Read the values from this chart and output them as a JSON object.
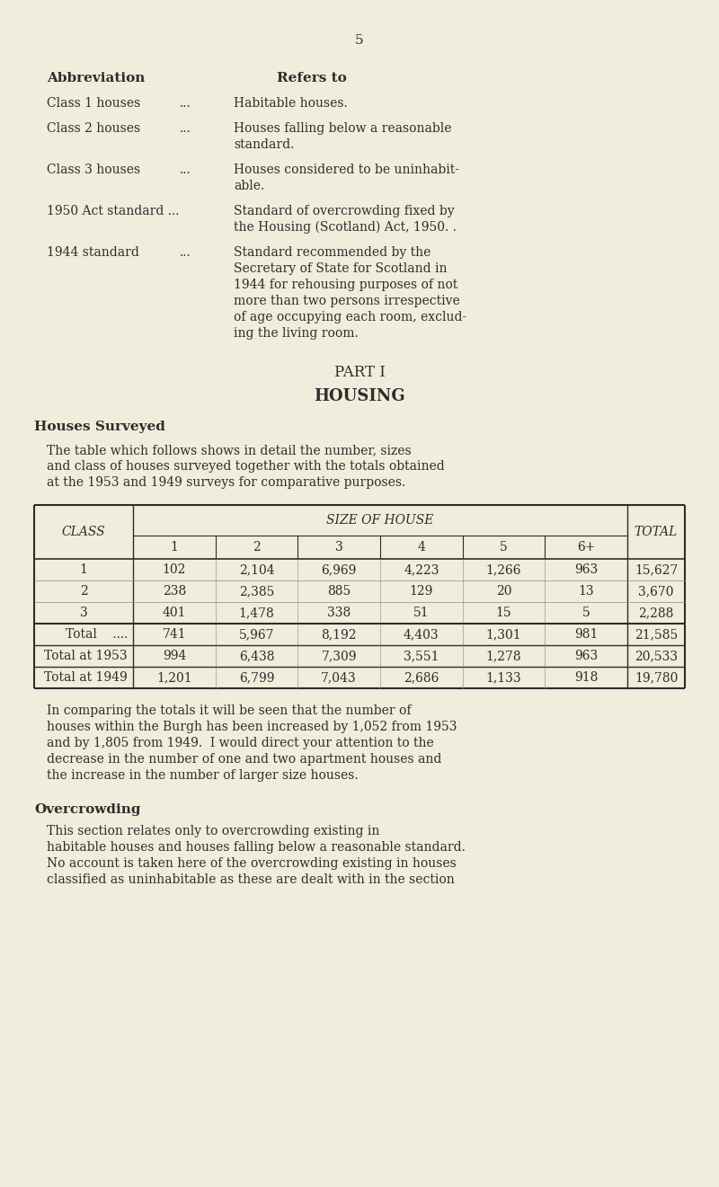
{
  "bg_color": "#f0eddc",
  "text_color": "#2d2d2d",
  "page_number": "5",
  "abbrev_header": "Abbreviation",
  "refers_header": "Refers to",
  "abbreviations": [
    {
      "term": "Class 1 houses",
      "dots": "...",
      "definition": "Habitable houses."
    },
    {
      "term": "Class 2 houses",
      "dots": "...",
      "definition": "Houses falling below a reasonable\nstandard."
    },
    {
      "term": "Class 3 houses",
      "dots": "...",
      "definition": "Houses considered to be uninhabit-\nable."
    },
    {
      "term": "1950 Act standard ...",
      "dots": "",
      "definition": "Standard of overcrowding fixed by\nthe Housing (Scotland) Act, 1950. ."
    },
    {
      "term": "1944 standard",
      "dots": "...",
      "definition": "Standard recommended by the\nSecretary of State for Scotland in\n1944 for rehousing purposes of not\nmore than two persons irrespective\nof age occupying each room, exclud-\ning the living room."
    }
  ],
  "part_heading": "PART I",
  "section_heading": "HOUSING",
  "subsection_heading": "Houses Surveyed",
  "intro_text": "The table which follows shows in detail the number, sizes\nand class of houses surveyed together with the totals obtained\nat the 1953 and 1949 surveys for comparative purposes.",
  "table_size_cols": [
    "1",
    "2",
    "3",
    "4",
    "5",
    "6+"
  ],
  "table_rows": [
    {
      "class": "1",
      "values": [
        "102",
        "2,104",
        "6,969",
        "4,223",
        "1,266",
        "963"
      ],
      "total": "15,627"
    },
    {
      "class": "2",
      "values": [
        "238",
        "2,385",
        "885",
        "129",
        "20",
        "13"
      ],
      "total": "3,670"
    },
    {
      "class": "3",
      "values": [
        "401",
        "1,478",
        "338",
        "51",
        "15",
        "5"
      ],
      "total": "2,288"
    }
  ],
  "table_summary_rows": [
    {
      "label": "Total    ....",
      "values": [
        "741",
        "5,967",
        "8,192",
        "4,403",
        "1,301",
        "981"
      ],
      "total": "21,585"
    },
    {
      "label": "Total at 1953",
      "values": [
        "994",
        "6,438",
        "7,309",
        "3,551",
        "1,278",
        "963"
      ],
      "total": "20,533"
    },
    {
      "label": "Total at 1949",
      "values": [
        "1,201",
        "6,799",
        "7,043",
        "2,686",
        "1,133",
        "918"
      ],
      "total": "19,780"
    }
  ],
  "para1_lines": [
    "In comparing the totals it will be seen that the number of",
    "houses within the Burgh has been increased by 1,052 from 1953",
    "and by 1,805 from 1949.  I would direct your attention to the",
    "decrease in the number of one and two apartment houses and",
    "the increase in the number of larger size houses."
  ],
  "overcrowding_heading": "Overcrowding",
  "overcrowding_lines": [
    "This section relates only to overcrowding existing in",
    "habitable houses and houses falling below a reasonable standard.",
    "No account is taken here of the overcrowding existing in houses",
    "classified as uninhabitable as these are dealt with in the section"
  ]
}
